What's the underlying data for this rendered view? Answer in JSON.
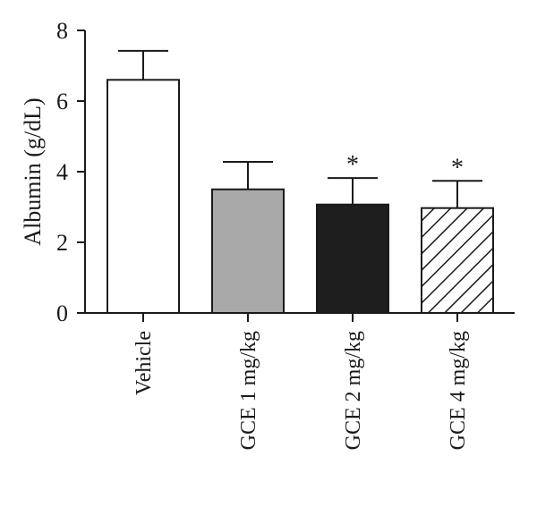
{
  "chart_data": {
    "type": "bar",
    "ylabel": "Albumin (g/dL)",
    "ylim": [
      0,
      8
    ],
    "yticks": [
      0,
      2,
      4,
      6,
      8
    ],
    "categories": [
      "Vehicle",
      "GCE 1 mg/kg",
      "GCE 2 mg/kg",
      "GCE 4 mg/kg"
    ],
    "values": [
      6.6,
      3.5,
      3.07,
      2.97
    ],
    "error_upper": [
      0.82,
      0.78,
      0.75,
      0.77
    ],
    "significance": [
      "",
      "",
      "*",
      "*"
    ],
    "fills": [
      "#ffffff",
      "#a9a9a9",
      "#1e1e1e",
      "hatch"
    ],
    "grid": false,
    "legend": "none"
  }
}
